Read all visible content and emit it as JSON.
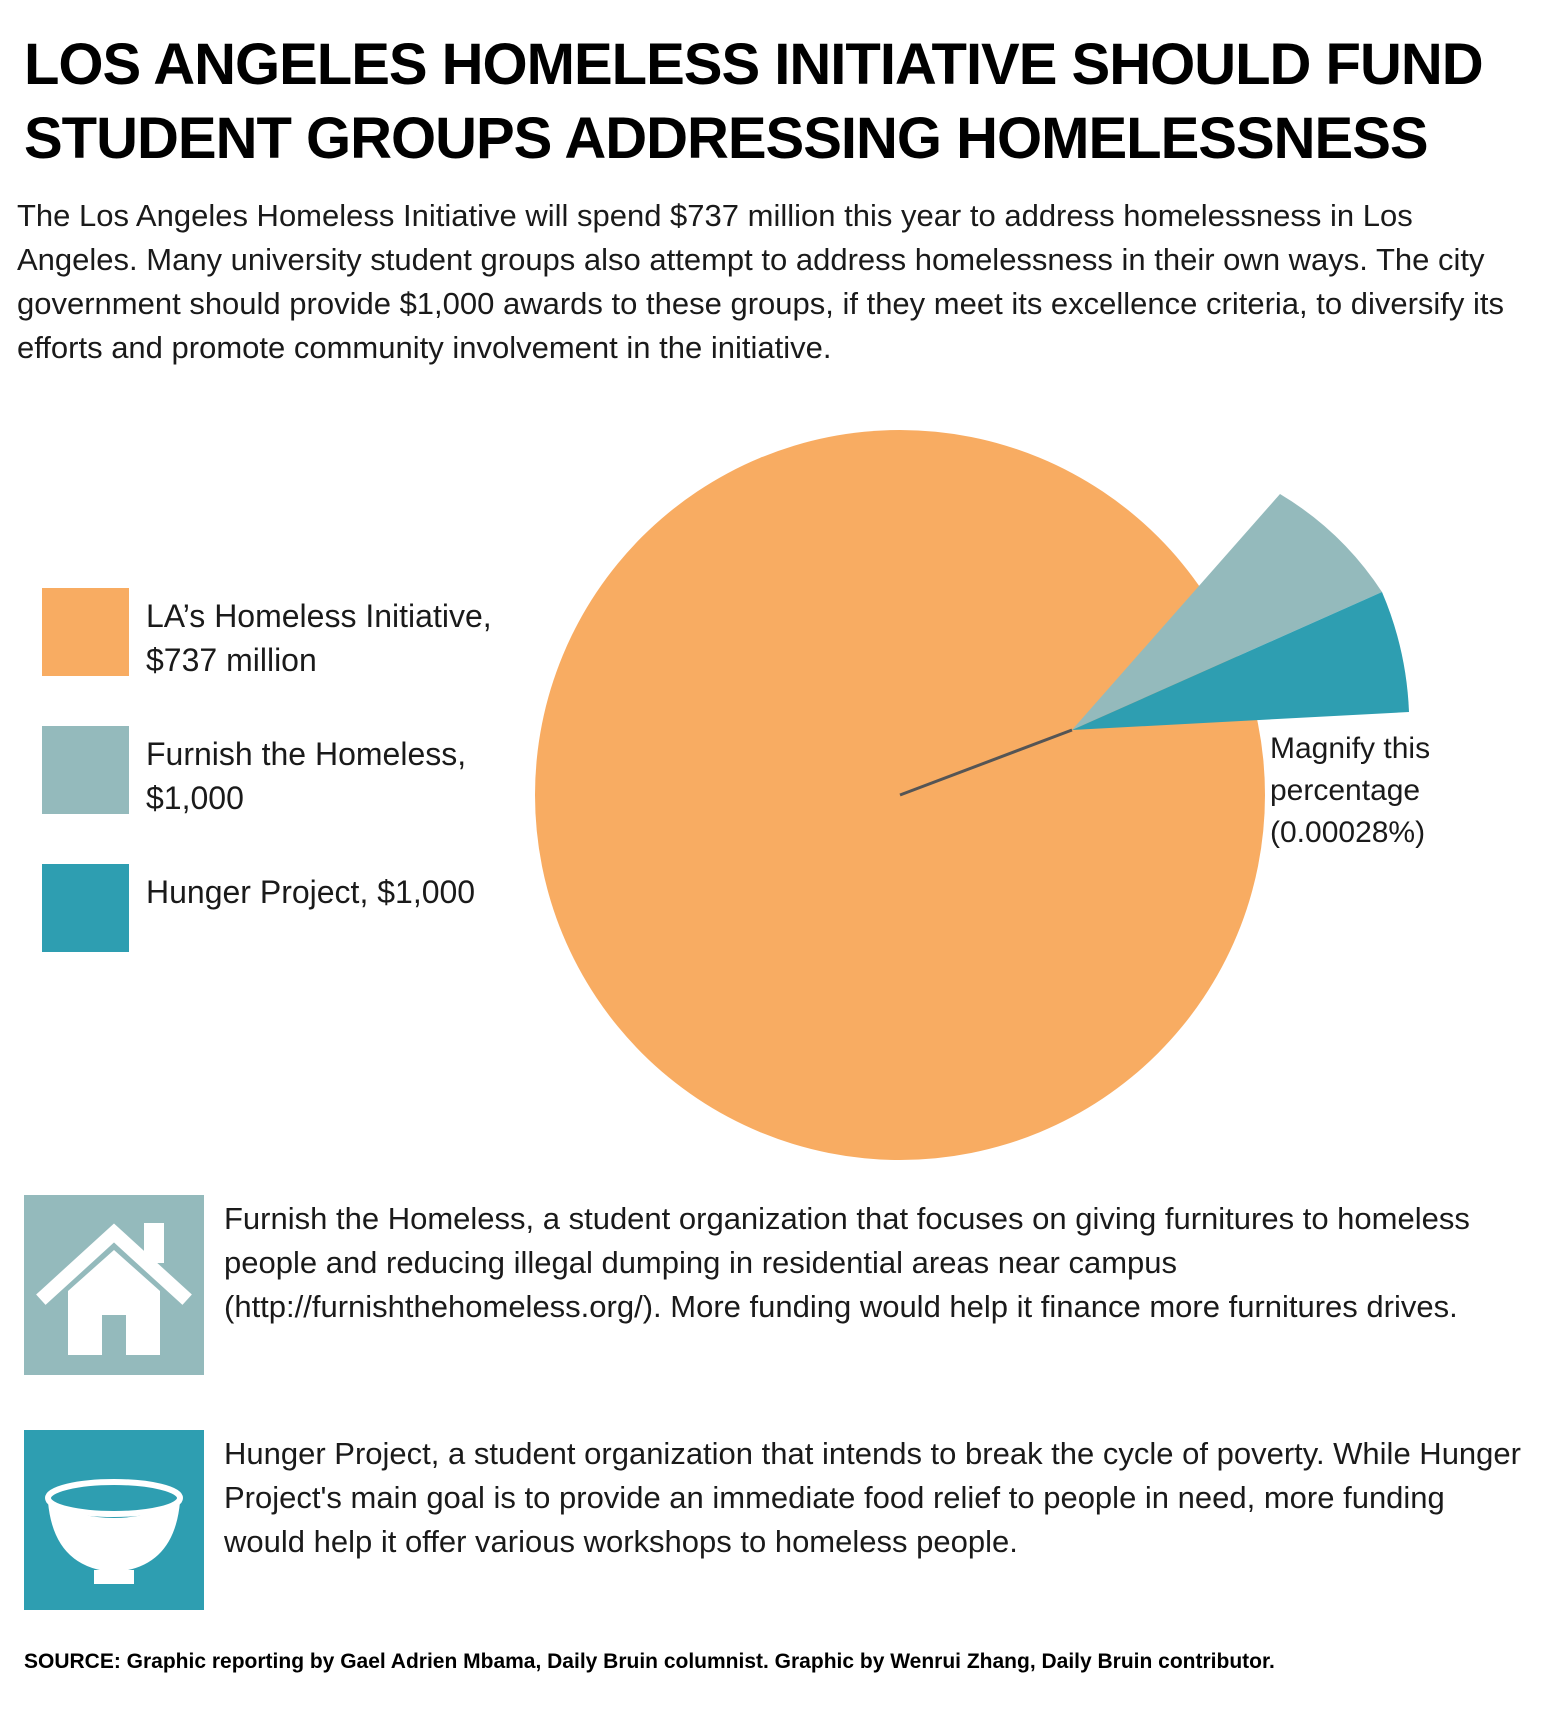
{
  "title": "LOS ANGELES HOMELESS INITIATIVE SHOULD FUND STUDENT GROUPS ADDRESSING HOMELESSNESS",
  "intro": "The Los Angeles Homeless Initiative will spend $737 million this year to address homelessness in Los Angeles. Many university student groups also attempt to address homelessness in their own ways. The city government should provide $1,000 awards to these groups, if they meet its excellence criteria, to diversify its efforts and promote community involvement in the initiative.",
  "callout": "Magnify this percentage (0.00028%)",
  "colors": {
    "la_initiative": "#f8ac62",
    "furnish": "#94babc",
    "hunger": "#2e9eb1",
    "leader_line": "#555555"
  },
  "chart_data": {
    "type": "pie",
    "series": [
      {
        "name": "LA's Homeless Initiative, $737 million",
        "value": 737000000,
        "color": "#f8ac62"
      },
      {
        "name": "Furnish the Homeless, $1,000",
        "value": 1000,
        "color": "#94babc"
      },
      {
        "name": "Hunger Project, $1,000",
        "value": 1000,
        "color": "#2e9eb1"
      }
    ],
    "legend": [
      {
        "label": "LA’s Homeless Initiative, $737 million",
        "color": "#f8ac62"
      },
      {
        "label": "Furnish the Homeless, $1,000",
        "color": "#94babc"
      },
      {
        "label": "Hunger Project, $1,000",
        "color": "#2e9eb1"
      }
    ],
    "annotation": "Magnify this percentage (0.00028%)",
    "magnified_share_percent": 0.00028,
    "legend_position": "left"
  },
  "organizations": [
    {
      "icon": "house-icon",
      "color": "#94babc",
      "text": "Furnish the Homeless, a student organization that focuses on giving furnitures to homeless people and reducing illegal dumping in residential areas near campus (http://furnishthehomeless.org/). More funding would help it finance more furnitures drives."
    },
    {
      "icon": "bowl-icon",
      "color": "#2e9eb1",
      "text": "Hunger Project, a student organization that intends to break the cycle of poverty. While Hunger Project's main goal is to provide an immediate food relief to people in need, more funding would help it offer various workshops to homeless people."
    }
  ],
  "source": "SOURCE: Graphic reporting by Gael Adrien Mbama, Daily Bruin columnist. Graphic by Wenrui Zhang, Daily Bruin contributor."
}
